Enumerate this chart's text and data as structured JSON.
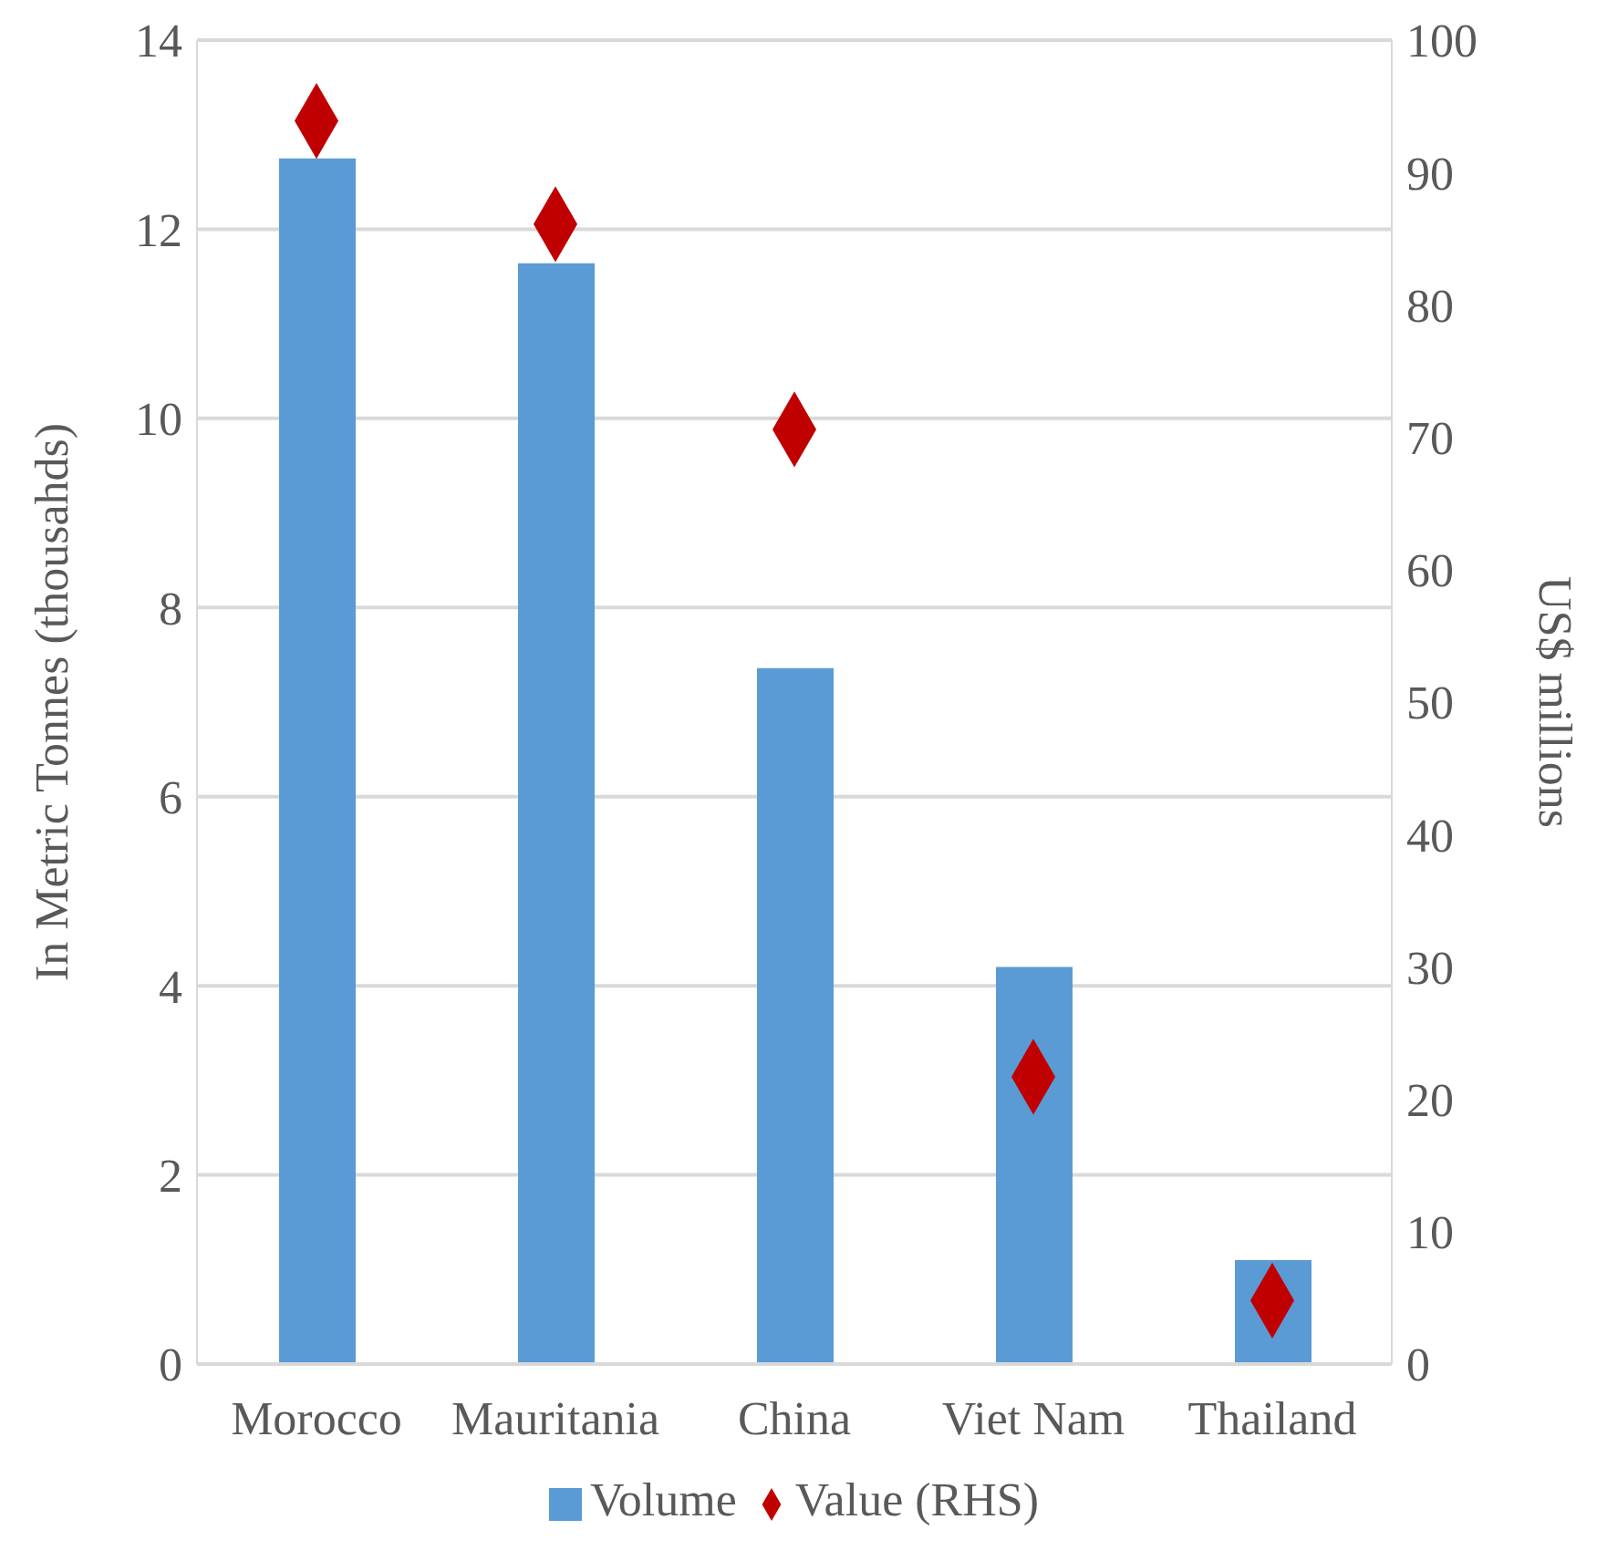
{
  "chart_data": {
    "type": "bar",
    "categories": [
      "Morocco",
      "Mauritania",
      "China",
      "Viet Nam",
      "Thailand"
    ],
    "series": [
      {
        "name": "Volume",
        "color": "#5b9bd5",
        "values": [
          12.75,
          11.64,
          7.36,
          4.2,
          1.1
        ]
      },
      {
        "name": "Value (RHS)",
        "type": "scatter",
        "axis": "y2",
        "color": "#c00000",
        "values": [
          93.9,
          86.1,
          70.6,
          21.7,
          4.8
        ]
      }
    ],
    "ylabel": "In Metric Tonnes (thousahds)",
    "y2label": "US$ millions",
    "ylim": [
      0,
      14
    ],
    "yticks": [
      0,
      2,
      4,
      6,
      8,
      10,
      12,
      14
    ],
    "y2lim": [
      0,
      100
    ],
    "y2ticks": [
      0,
      10,
      20,
      30,
      40,
      50,
      60,
      70,
      80,
      90,
      100
    ],
    "grid": "y",
    "legend": "bottom",
    "marker": "diamond"
  }
}
